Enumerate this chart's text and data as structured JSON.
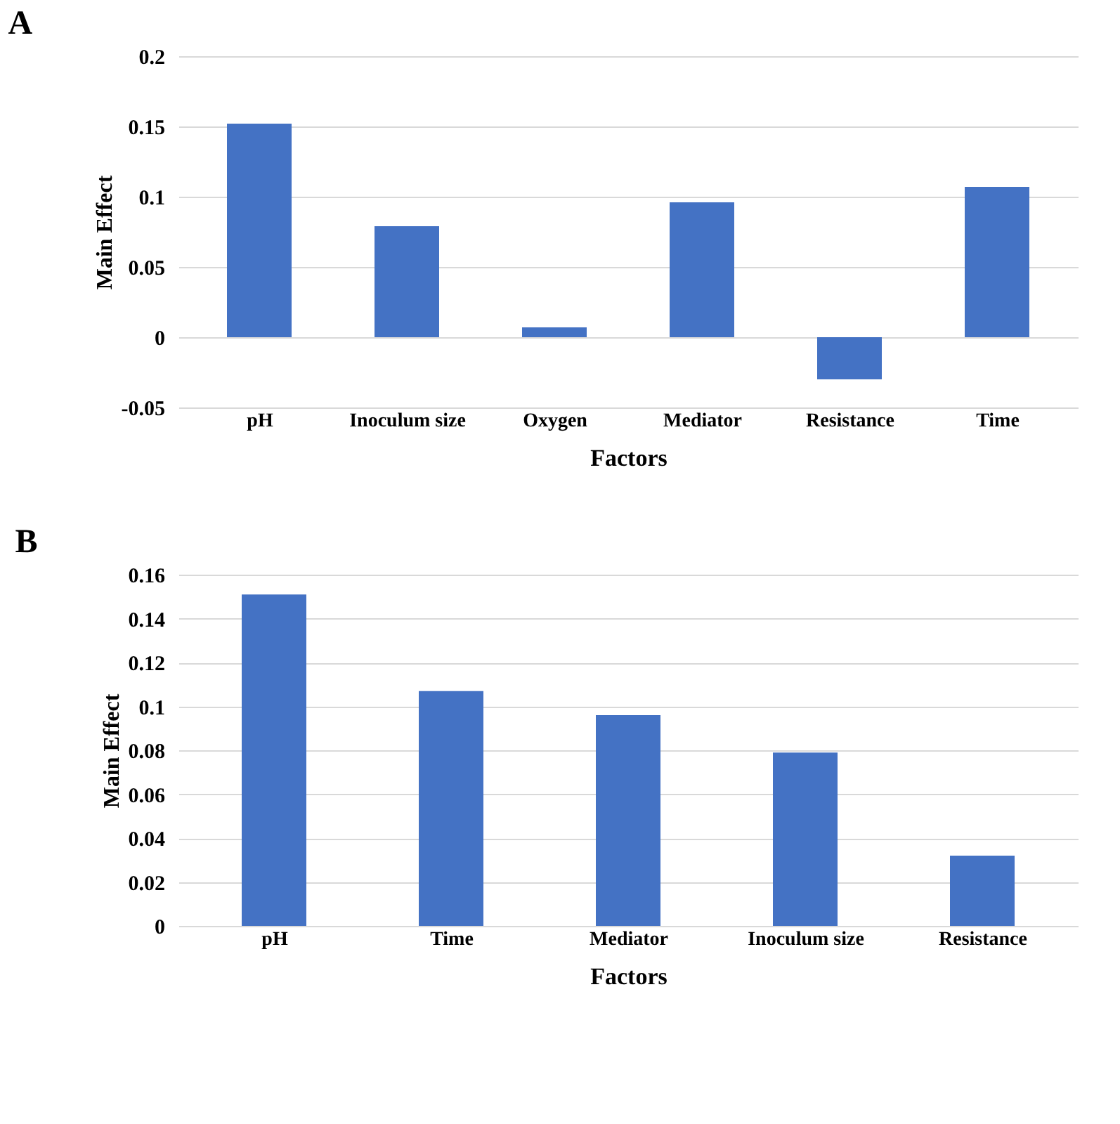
{
  "chart_data": [
    {
      "type": "bar",
      "title": "A",
      "xlabel": "Factors",
      "ylabel": "Main Effect",
      "categories": [
        "pH",
        "Inoculum size",
        "Oxygen",
        "Mediator",
        "Resistance",
        "Time"
      ],
      "values": [
        0.152,
        0.079,
        0.007,
        0.096,
        -0.03,
        0.107
      ],
      "color": "#4472c4",
      "ylim": [
        -0.05,
        0.2
      ],
      "yticks": [
        -0.05,
        0,
        0.05,
        0.1,
        0.15,
        0.2
      ],
      "grid": "y"
    },
    {
      "type": "bar",
      "title": "B",
      "xlabel": "Factors",
      "ylabel": "Main Effect",
      "categories": [
        "pH",
        "Time",
        "Mediator",
        "Inoculum size",
        "Resistance"
      ],
      "values": [
        0.151,
        0.107,
        0.096,
        0.079,
        0.032
      ],
      "color": "#4472c4",
      "ylim": [
        0,
        0.16
      ],
      "yticks": [
        0,
        0.02,
        0.04,
        0.06,
        0.08,
        0.1,
        0.12,
        0.14,
        0.16
      ],
      "grid": "y"
    }
  ]
}
